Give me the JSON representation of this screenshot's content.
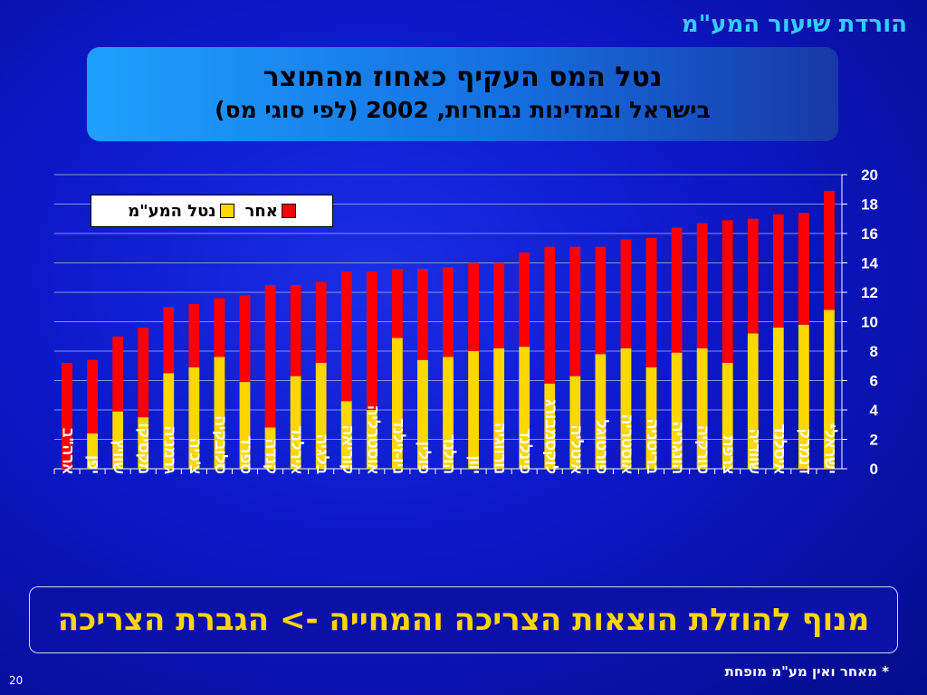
{
  "slide": {
    "title": "הורדת שיעור המע\"מ",
    "box_title_line1": "נטל המס העקיף כאחוז מהתוצר",
    "box_title_line2": "בישראל ובמדינות נבחרות, 2002 (לפי סוגי מס)",
    "banner": "מנוף להוזלת הוצאות הצריכה והמחייה -> הגברת הצריכה",
    "footnote": "* מאחר ואין מע\"מ מופחת",
    "page_number": "20"
  },
  "chart_data": {
    "type": "bar",
    "stacked": true,
    "categories": [
      "ארה\"ב",
      "יפן",
      "שוויץ",
      "מקסיקו",
      "גרמניה",
      "צ'כיה",
      "סלובקיה",
      "ספרד",
      "קנדה",
      "אירלנד",
      "בלגיה",
      "קוריאה",
      "אוסטרליה",
      "ניו-זילנד",
      "פולין",
      "הולנד",
      "יוון",
      "נורווגיה",
      "פינלנד",
      "לוקסמבורג",
      "איטליה",
      "פורטוגל",
      "אוסטריה",
      "בריטניה",
      "הונגריה",
      "טורקיה",
      "צרפת",
      "שוודיה",
      "איסלנד",
      "דנמרק",
      "ישראל*"
    ],
    "series": [
      {
        "name": "נטל המע\"מ",
        "color": "#ffd700",
        "values": [
          0,
          2.4,
          3.9,
          3.5,
          6.5,
          6.9,
          7.6,
          5.9,
          2.8,
          6.3,
          7.2,
          4.6,
          4.0,
          8.9,
          7.4,
          7.6,
          8.0,
          8.2,
          8.3,
          5.8,
          6.3,
          7.8,
          8.2,
          6.9,
          7.9,
          8.2,
          7.2,
          9.2,
          9.6,
          9.8,
          10.8
        ]
      },
      {
        "name": "אחר",
        "color": "#ff0000",
        "values": [
          7.2,
          5.0,
          5.1,
          6.1,
          4.5,
          4.3,
          4.0,
          5.9,
          9.7,
          6.2,
          5.5,
          8.8,
          9.4,
          4.7,
          6.2,
          6.1,
          6.0,
          5.8,
          6.4,
          9.3,
          8.8,
          7.3,
          7.4,
          8.8,
          8.5,
          8.5,
          9.7,
          7.8,
          7.7,
          7.6,
          8.1
        ]
      }
    ],
    "ylim": [
      0,
      20
    ],
    "yticks": [
      0,
      2,
      4,
      6,
      8,
      10,
      12,
      14,
      16,
      18,
      20
    ],
    "y_axis_side": "right",
    "grid": true,
    "legend_position": "top-left"
  }
}
